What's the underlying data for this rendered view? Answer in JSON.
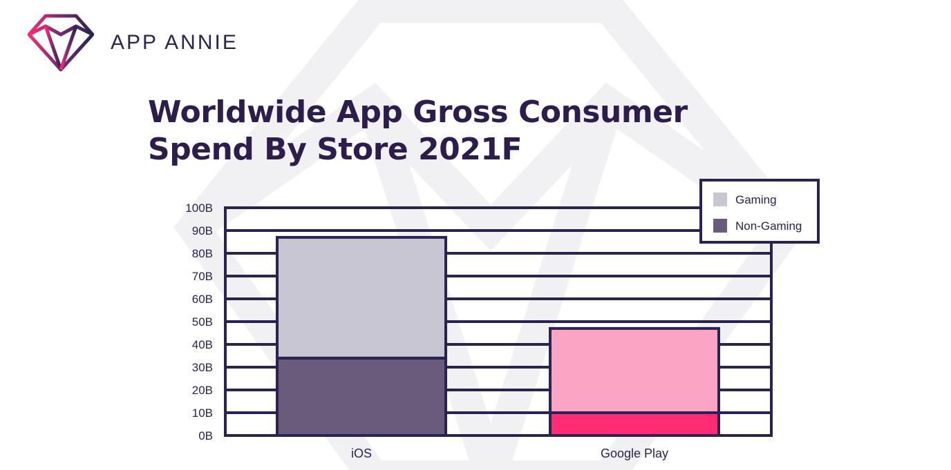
{
  "brand": {
    "name": "APP ANNIE",
    "logo_icon": "diamond-logo-icon"
  },
  "colors": {
    "ink": "#2a2250",
    "ios_gaming": "#c9c6d3",
    "ios_non_gaming": "#6a5a7c",
    "gp_gaming": "#fca4c4",
    "gp_non_gaming": "#ff2a72",
    "legend_gaming": "#c9c6d3",
    "legend_non_gaming": "#6a5a7c"
  },
  "chart_data": {
    "type": "bar",
    "stacked": true,
    "title": "Worldwide App Gross Consumer Spend By Store 2021F",
    "title_lines": [
      "Worldwide App Gross Consumer",
      "Spend By Store 2021F"
    ],
    "xlabel": "",
    "ylabel": "",
    "categories": [
      "iOS",
      "Google Play"
    ],
    "series": [
      {
        "name": "Non-Gaming",
        "values": [
          34,
          10
        ]
      },
      {
        "name": "Gaming",
        "values": [
          53,
          37
        ]
      }
    ],
    "ylim": [
      0,
      100
    ],
    "yticks": [
      0,
      10,
      20,
      30,
      40,
      50,
      60,
      70,
      80,
      90,
      100
    ],
    "ytick_labels": [
      "0B",
      "10B",
      "20B",
      "30B",
      "40B",
      "50B",
      "60B",
      "70B",
      "80B",
      "90B",
      "100B"
    ],
    "grid": true,
    "legend": {
      "position": "top-right",
      "entries": [
        "Gaming",
        "Non-Gaming"
      ]
    }
  }
}
